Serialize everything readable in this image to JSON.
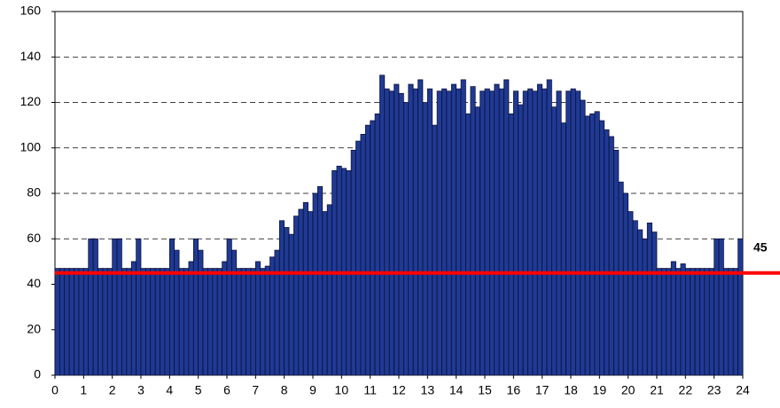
{
  "chart_data": {
    "type": "bar",
    "x": [
      0,
      10,
      20,
      30,
      40,
      50,
      60,
      70,
      80,
      90,
      100,
      110,
      120,
      130,
      140,
      150,
      160,
      170,
      180,
      190,
      200,
      210,
      220,
      230,
      240,
      250,
      260,
      270,
      280,
      290,
      300,
      310,
      320,
      330,
      340,
      350,
      360,
      370,
      380,
      390,
      400,
      410,
      420,
      430,
      440,
      450,
      460,
      470,
      480,
      490,
      500,
      510,
      520,
      530,
      540,
      550,
      560,
      570,
      580,
      590,
      600,
      610,
      620,
      630,
      640,
      650,
      660,
      670,
      680,
      690,
      700,
      710,
      720,
      730,
      740,
      750,
      760,
      770,
      780,
      790,
      800,
      810,
      820,
      830,
      840,
      850,
      860,
      870,
      880,
      890,
      900,
      910,
      920,
      930,
      940,
      950,
      960,
      970,
      980,
      990,
      1000,
      1010,
      1020,
      1030,
      1040,
      1050,
      1060,
      1070,
      1080,
      1090,
      1100,
      1110,
      1120,
      1130,
      1140,
      1150,
      1160,
      1170,
      1180,
      1190,
      1200,
      1210,
      1220,
      1230,
      1240,
      1250,
      1260,
      1270,
      1280,
      1290,
      1300,
      1310,
      1320,
      1330,
      1340,
      1350,
      1360,
      1370,
      1380,
      1390,
      1400,
      1410,
      1420,
      1430
    ],
    "values": [
      47,
      47,
      47,
      47,
      47,
      47,
      47,
      60,
      60,
      47,
      47,
      47,
      60,
      60,
      47,
      47,
      50,
      60,
      47,
      47,
      47,
      47,
      47,
      47,
      60,
      55,
      47,
      47,
      50,
      60,
      55,
      47,
      47,
      47,
      47,
      50,
      60,
      55,
      47,
      47,
      47,
      47,
      50,
      47,
      48,
      52,
      55,
      68,
      65,
      62,
      70,
      73,
      76,
      72,
      80,
      83,
      72,
      75,
      90,
      92,
      91,
      90,
      99,
      103,
      106,
      110,
      112,
      115,
      132,
      126,
      125,
      128,
      124,
      120,
      128,
      126,
      130,
      120,
      126,
      110,
      125,
      126,
      125,
      128,
      126,
      130,
      115,
      127,
      118,
      125,
      126,
      125,
      128,
      126,
      130,
      115,
      125,
      119,
      125,
      126,
      125,
      128,
      126,
      130,
      118,
      125,
      111,
      125,
      126,
      125,
      121,
      114,
      115,
      116,
      112,
      108,
      105,
      99,
      85,
      80,
      72,
      68,
      64,
      60,
      67,
      63,
      47,
      47,
      47,
      50,
      47,
      49,
      47,
      47,
      47,
      47,
      47,
      47,
      60,
      60,
      47,
      47,
      47,
      60
    ],
    "color": "#1f3a93",
    "xlim": [
      0,
      1440
    ],
    "xticks": [
      {
        "value": 0,
        "label": "0"
      },
      {
        "value": 60,
        "label": "1"
      },
      {
        "value": 120,
        "label": "2"
      },
      {
        "value": 180,
        "label": "3"
      },
      {
        "value": 240,
        "label": "4"
      },
      {
        "value": 300,
        "label": "5"
      },
      {
        "value": 360,
        "label": "6"
      },
      {
        "value": 420,
        "label": "7"
      },
      {
        "value": 480,
        "label": "8"
      },
      {
        "value": 540,
        "label": "9"
      },
      {
        "value": 600,
        "label": "10"
      },
      {
        "value": 660,
        "label": "11"
      },
      {
        "value": 720,
        "label": "12"
      },
      {
        "value": 780,
        "label": "13"
      },
      {
        "value": 840,
        "label": "14"
      },
      {
        "value": 900,
        "label": "15"
      },
      {
        "value": 960,
        "label": "16"
      },
      {
        "value": 1020,
        "label": "17"
      },
      {
        "value": 1080,
        "label": "18"
      },
      {
        "value": 1140,
        "label": "19"
      },
      {
        "value": 1200,
        "label": "20"
      },
      {
        "value": 1260,
        "label": "21"
      },
      {
        "value": 1320,
        "label": "22"
      },
      {
        "value": 1380,
        "label": "23"
      },
      {
        "value": 1440,
        "label": "24"
      }
    ],
    "ylim": [
      0,
      160
    ],
    "yticks": [
      0,
      20,
      40,
      60,
      80,
      100,
      120,
      140,
      160
    ],
    "grid": true,
    "reference_line": {
      "value": 45,
      "color": "#ff0000"
    }
  }
}
